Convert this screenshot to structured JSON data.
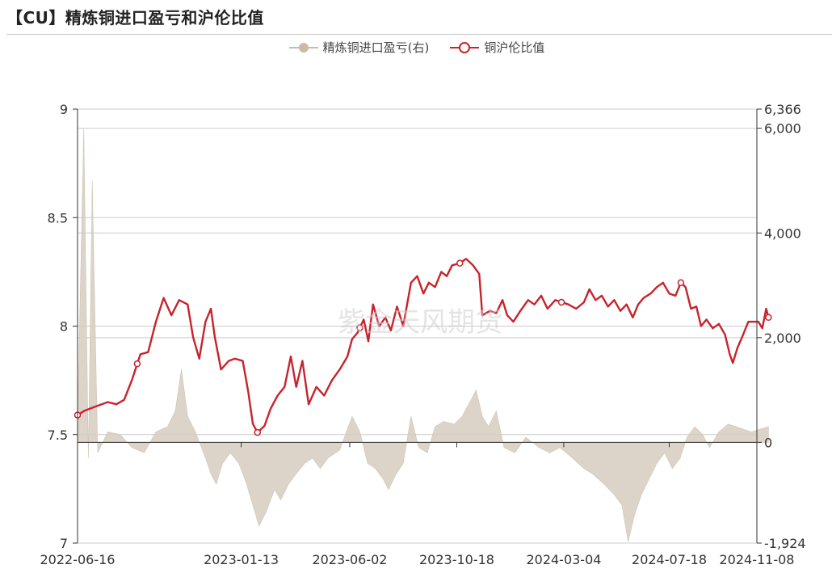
{
  "title": "【CU】精炼铜进口盈亏和沪伦比值",
  "watermark": "紫金天风期货",
  "legend": {
    "profit_label": "精炼铜进口盈亏(右)",
    "ratio_label": "铜沪伦比值"
  },
  "colors": {
    "ratio_line": "#c8232c",
    "profit_area": "#d6cdc0",
    "profit_legend": "#c9bba6",
    "grid": "#cccccc",
    "axis": "#333333"
  },
  "chart_data": {
    "type": "line",
    "x_ticks": [
      "2022-06-16",
      "2023-01-13",
      "2023-06-02",
      "2023-10-18",
      "2024-03-04",
      "2024-07-18",
      "2024-11-08"
    ],
    "left_axis": {
      "min": 7,
      "max": 9,
      "ticks": [
        "7",
        "7.5",
        "8",
        "8.5",
        "9"
      ]
    },
    "right_axis": {
      "min": -1924,
      "max": 6366,
      "ticks": [
        "-1,924",
        "0",
        "2,000",
        "4,000",
        "6,000",
        "6,366"
      ]
    },
    "series": [
      {
        "name": "铜沪伦比值",
        "axis": "left",
        "style": "line",
        "points": [
          [
            "2022-06-16",
            7.59
          ],
          [
            "2022-06-25",
            7.61
          ],
          [
            "2022-07-10",
            7.63
          ],
          [
            "2022-07-25",
            7.65
          ],
          [
            "2022-08-05",
            7.64
          ],
          [
            "2022-08-15",
            7.66
          ],
          [
            "2022-08-25",
            7.75
          ],
          [
            "2022-09-05",
            7.87
          ],
          [
            "2022-09-15",
            7.88
          ],
          [
            "2022-09-25",
            8.02
          ],
          [
            "2022-10-05",
            8.13
          ],
          [
            "2022-10-15",
            8.05
          ],
          [
            "2022-10-25",
            8.12
          ],
          [
            "2022-11-05",
            8.1
          ],
          [
            "2022-11-12",
            7.95
          ],
          [
            "2022-11-20",
            7.85
          ],
          [
            "2022-11-28",
            8.02
          ],
          [
            "2022-12-05",
            8.08
          ],
          [
            "2022-12-10",
            7.95
          ],
          [
            "2022-12-18",
            7.8
          ],
          [
            "2022-12-28",
            7.84
          ],
          [
            "2023-01-05",
            7.85
          ],
          [
            "2023-01-15",
            7.84
          ],
          [
            "2023-01-22",
            7.7
          ],
          [
            "2023-01-28",
            7.55
          ],
          [
            "2023-02-03",
            7.51
          ],
          [
            "2023-02-12",
            7.54
          ],
          [
            "2023-02-20",
            7.62
          ],
          [
            "2023-03-01",
            7.68
          ],
          [
            "2023-03-10",
            7.72
          ],
          [
            "2023-03-18",
            7.86
          ],
          [
            "2023-03-25",
            7.72
          ],
          [
            "2023-04-02",
            7.84
          ],
          [
            "2023-04-10",
            7.64
          ],
          [
            "2023-04-20",
            7.72
          ],
          [
            "2023-04-30",
            7.68
          ],
          [
            "2023-05-10",
            7.75
          ],
          [
            "2023-05-20",
            7.8
          ],
          [
            "2023-05-30",
            7.86
          ],
          [
            "2023-06-05",
            7.94
          ],
          [
            "2023-06-12",
            7.97
          ],
          [
            "2023-06-20",
            8.03
          ],
          [
            "2023-06-26",
            7.93
          ],
          [
            "2023-07-02",
            8.1
          ],
          [
            "2023-07-10",
            8.0
          ],
          [
            "2023-07-18",
            8.04
          ],
          [
            "2023-07-25",
            7.98
          ],
          [
            "2023-08-02",
            8.09
          ],
          [
            "2023-08-10",
            8.0
          ],
          [
            "2023-08-20",
            8.2
          ],
          [
            "2023-08-28",
            8.23
          ],
          [
            "2023-09-05",
            8.15
          ],
          [
            "2023-09-12",
            8.2
          ],
          [
            "2023-09-20",
            8.18
          ],
          [
            "2023-09-28",
            8.25
          ],
          [
            "2023-10-05",
            8.23
          ],
          [
            "2023-10-12",
            8.28
          ],
          [
            "2023-10-22",
            8.29
          ],
          [
            "2023-10-30",
            8.31
          ],
          [
            "2023-11-08",
            8.28
          ],
          [
            "2023-11-16",
            8.24
          ],
          [
            "2023-11-20",
            8.05
          ],
          [
            "2023-11-30",
            8.07
          ],
          [
            "2023-12-08",
            8.06
          ],
          [
            "2023-12-16",
            8.12
          ],
          [
            "2023-12-22",
            8.05
          ],
          [
            "2023-12-30",
            8.02
          ],
          [
            "2024-01-08",
            8.07
          ],
          [
            "2024-01-18",
            8.12
          ],
          [
            "2024-01-26",
            8.1
          ],
          [
            "2024-02-04",
            8.14
          ],
          [
            "2024-02-12",
            8.08
          ],
          [
            "2024-02-22",
            8.12
          ],
          [
            "2024-03-01",
            8.11
          ],
          [
            "2024-03-10",
            8.1
          ],
          [
            "2024-03-20",
            8.08
          ],
          [
            "2024-03-30",
            8.11
          ],
          [
            "2024-04-06",
            8.17
          ],
          [
            "2024-04-14",
            8.12
          ],
          [
            "2024-04-22",
            8.14
          ],
          [
            "2024-04-30",
            8.09
          ],
          [
            "2024-05-08",
            8.12
          ],
          [
            "2024-05-16",
            8.07
          ],
          [
            "2024-05-24",
            8.1
          ],
          [
            "2024-06-01",
            8.04
          ],
          [
            "2024-06-08",
            8.1
          ],
          [
            "2024-06-15",
            8.13
          ],
          [
            "2024-06-24",
            8.15
          ],
          [
            "2024-07-02",
            8.18
          ],
          [
            "2024-07-10",
            8.2
          ],
          [
            "2024-07-18",
            8.15
          ],
          [
            "2024-07-26",
            8.14
          ],
          [
            "2024-08-02",
            8.2
          ],
          [
            "2024-08-08",
            8.18
          ],
          [
            "2024-08-15",
            8.08
          ],
          [
            "2024-08-22",
            8.09
          ],
          [
            "2024-08-28",
            8.0
          ],
          [
            "2024-09-04",
            8.03
          ],
          [
            "2024-09-12",
            7.99
          ],
          [
            "2024-09-20",
            8.01
          ],
          [
            "2024-09-28",
            7.96
          ],
          [
            "2024-10-04",
            7.87
          ],
          [
            "2024-10-08",
            7.83
          ],
          [
            "2024-10-14",
            7.9
          ],
          [
            "2024-10-20",
            7.95
          ],
          [
            "2024-10-28",
            8.02
          ],
          [
            "2024-11-03",
            8.02
          ],
          [
            "2024-11-10",
            8.02
          ],
          [
            "2024-11-15",
            7.99
          ],
          [
            "2024-11-20",
            8.08
          ],
          [
            "2024-11-23",
            8.04
          ]
        ],
        "markers": [
          "2022-06-16",
          "2022-09-01",
          "2023-02-03",
          "2023-06-15",
          "2023-10-22",
          "2024-03-01",
          "2024-08-02",
          "2024-11-23"
        ]
      },
      {
        "name": "精炼铜进口盈亏(右)",
        "axis": "right",
        "style": "area",
        "points": [
          [
            "2022-06-16",
            400
          ],
          [
            "2022-06-24",
            6000
          ],
          [
            "2022-06-30",
            -300
          ],
          [
            "2022-07-05",
            5000
          ],
          [
            "2022-07-12",
            -200
          ],
          [
            "2022-07-25",
            200
          ],
          [
            "2022-08-10",
            150
          ],
          [
            "2022-08-25",
            -100
          ],
          [
            "2022-09-10",
            -200
          ],
          [
            "2022-09-25",
            200
          ],
          [
            "2022-10-10",
            300
          ],
          [
            "2022-10-20",
            600
          ],
          [
            "2022-10-28",
            1400
          ],
          [
            "2022-11-05",
            500
          ],
          [
            "2022-11-15",
            200
          ],
          [
            "2022-11-28",
            -300
          ],
          [
            "2022-12-05",
            -600
          ],
          [
            "2022-12-12",
            -800
          ],
          [
            "2022-12-20",
            -400
          ],
          [
            "2022-12-30",
            -200
          ],
          [
            "2023-01-10",
            -400
          ],
          [
            "2023-01-20",
            -800
          ],
          [
            "2023-01-28",
            -1200
          ],
          [
            "2023-02-05",
            -1600
          ],
          [
            "2023-02-15",
            -1300
          ],
          [
            "2023-02-25",
            -900
          ],
          [
            "2023-03-05",
            -1100
          ],
          [
            "2023-03-15",
            -800
          ],
          [
            "2023-03-25",
            -600
          ],
          [
            "2023-04-05",
            -400
          ],
          [
            "2023-04-15",
            -300
          ],
          [
            "2023-04-25",
            -500
          ],
          [
            "2023-05-05",
            -300
          ],
          [
            "2023-05-20",
            -150
          ],
          [
            "2023-06-05",
            500
          ],
          [
            "2023-06-15",
            200
          ],
          [
            "2023-06-25",
            -400
          ],
          [
            "2023-07-05",
            -500
          ],
          [
            "2023-07-15",
            -700
          ],
          [
            "2023-07-22",
            -900
          ],
          [
            "2023-08-01",
            -600
          ],
          [
            "2023-08-10",
            -400
          ],
          [
            "2023-08-20",
            500
          ],
          [
            "2023-08-30",
            -100
          ],
          [
            "2023-09-10",
            -200
          ],
          [
            "2023-09-20",
            300
          ],
          [
            "2023-10-01",
            400
          ],
          [
            "2023-10-15",
            350
          ],
          [
            "2023-10-25",
            500
          ],
          [
            "2023-11-05",
            800
          ],
          [
            "2023-11-12",
            1000
          ],
          [
            "2023-11-20",
            500
          ],
          [
            "2023-11-28",
            300
          ],
          [
            "2023-12-08",
            600
          ],
          [
            "2023-12-18",
            -100
          ],
          [
            "2024-01-01",
            -200
          ],
          [
            "2024-01-15",
            100
          ],
          [
            "2024-02-01",
            -100
          ],
          [
            "2024-02-15",
            -200
          ],
          [
            "2024-02-28",
            -100
          ],
          [
            "2024-03-15",
            -300
          ],
          [
            "2024-03-30",
            -500
          ],
          [
            "2024-04-10",
            -600
          ],
          [
            "2024-04-25",
            -800
          ],
          [
            "2024-05-08",
            -1000
          ],
          [
            "2024-05-18",
            -1200
          ],
          [
            "2024-05-26",
            -1900
          ],
          [
            "2024-06-03",
            -1400
          ],
          [
            "2024-06-12",
            -1000
          ],
          [
            "2024-06-22",
            -700
          ],
          [
            "2024-07-02",
            -400
          ],
          [
            "2024-07-12",
            -200
          ],
          [
            "2024-07-22",
            -500
          ],
          [
            "2024-08-01",
            -300
          ],
          [
            "2024-08-10",
            100
          ],
          [
            "2024-08-20",
            300
          ],
          [
            "2024-08-30",
            150
          ],
          [
            "2024-09-08",
            -100
          ],
          [
            "2024-09-20",
            200
          ],
          [
            "2024-10-02",
            350
          ],
          [
            "2024-10-12",
            300
          ],
          [
            "2024-10-22",
            250
          ],
          [
            "2024-11-01",
            200
          ],
          [
            "2024-11-12",
            250
          ],
          [
            "2024-11-23",
            300
          ]
        ]
      }
    ],
    "grid": true,
    "legend_position": "top-center"
  }
}
